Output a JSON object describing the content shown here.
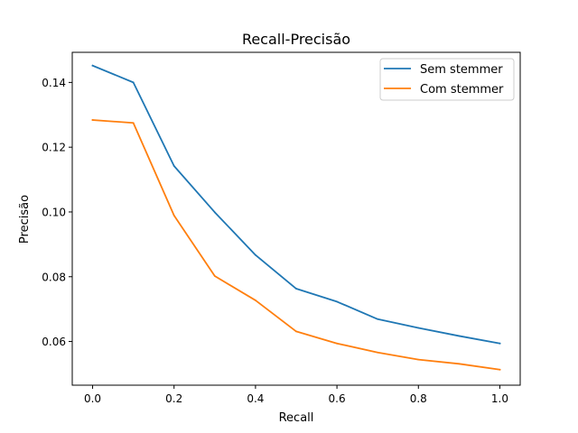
{
  "chart_data": {
    "type": "line",
    "title": "Recall-Precisão",
    "xlabel": "Recall",
    "ylabel": "Precisão",
    "xlim": [
      -0.05,
      1.05
    ],
    "ylim": [
      0.0465,
      0.1493
    ],
    "x_ticks": [
      0.0,
      0.2,
      0.4,
      0.6,
      0.8,
      1.0
    ],
    "x_tick_labels": [
      "0.0",
      "0.2",
      "0.4",
      "0.6",
      "0.8",
      "1.0"
    ],
    "y_ticks": [
      0.06,
      0.08,
      0.1,
      0.12,
      0.14
    ],
    "y_tick_labels": [
      "0.06",
      "0.08",
      "0.10",
      "0.12",
      "0.14"
    ],
    "grid": false,
    "legend_position": "top-right",
    "x": [
      0.0,
      0.1,
      0.2,
      0.3,
      0.4,
      0.5,
      0.6,
      0.7,
      0.8,
      0.9,
      1.0
    ],
    "series": [
      {
        "name": "Sem stemmer",
        "color": "#1f77b4",
        "values": [
          0.1452,
          0.14,
          0.1142,
          0.0999,
          0.0867,
          0.0763,
          0.0723,
          0.0669,
          0.0642,
          0.0617,
          0.0594
        ]
      },
      {
        "name": "Com stemmer",
        "color": "#ff7f0e",
        "values": [
          0.1284,
          0.1275,
          0.0989,
          0.0802,
          0.0727,
          0.0631,
          0.0594,
          0.0566,
          0.0544,
          0.0531,
          0.0513
        ]
      }
    ]
  }
}
